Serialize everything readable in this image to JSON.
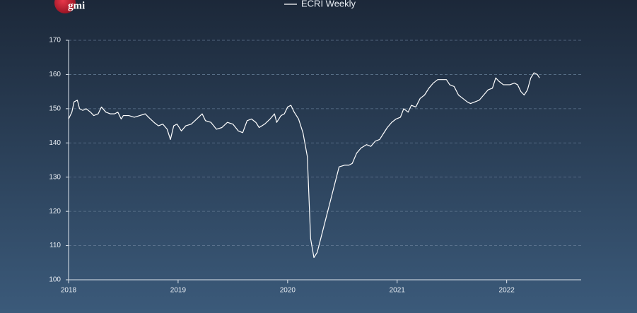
{
  "logo": "gmi",
  "chart_data": {
    "type": "line",
    "xlim": [
      2018,
      2022.68
    ],
    "xticks": [
      2018,
      2019,
      2020,
      2021,
      2022
    ],
    "ylim": [
      100,
      170
    ],
    "yticks": [
      100,
      110,
      120,
      130,
      140,
      150,
      160,
      170
    ],
    "grid": true,
    "legend": "top",
    "x": [
      2018.0,
      2018.03,
      2018.05,
      2018.08,
      2018.1,
      2018.13,
      2018.16,
      2018.2,
      2018.23,
      2018.27,
      2018.3,
      2018.34,
      2018.38,
      2018.42,
      2018.45,
      2018.48,
      2018.5,
      2018.55,
      2018.6,
      2018.65,
      2018.7,
      2018.73,
      2018.78,
      2018.82,
      2018.86,
      2018.9,
      2018.93,
      2018.96,
      2018.99,
      2019.03,
      2019.07,
      2019.12,
      2019.17,
      2019.22,
      2019.25,
      2019.3,
      2019.35,
      2019.4,
      2019.45,
      2019.5,
      2019.55,
      2019.59,
      2019.63,
      2019.67,
      2019.71,
      2019.74,
      2019.79,
      2019.84,
      2019.88,
      2019.9,
      2019.94,
      2019.97,
      2020.0,
      2020.03,
      2020.06,
      2020.1,
      2020.14,
      2020.18,
      2020.21,
      2020.24,
      2020.27,
      2020.31,
      2020.35,
      2020.39,
      2020.43,
      2020.47,
      2020.52,
      2020.56,
      2020.59,
      2020.63,
      2020.67,
      2020.72,
      2020.76,
      2020.8,
      2020.84,
      2020.88,
      2020.91,
      2020.95,
      2020.99,
      2021.03,
      2021.06,
      2021.1,
      2021.13,
      2021.17,
      2021.21,
      2021.25,
      2021.29,
      2021.33,
      2021.37,
      2021.41,
      2021.45,
      2021.48,
      2021.52,
      2021.56,
      2021.6,
      2021.64,
      2021.67,
      2021.71,
      2021.75,
      2021.79,
      2021.83,
      2021.87,
      2021.9,
      2021.93,
      2021.97,
      2022.0,
      2022.03,
      2022.07,
      2022.1,
      2022.13,
      2022.16,
      2022.19,
      2022.22,
      2022.25,
      2022.28,
      2022.3
    ],
    "series": [
      {
        "name": "ECRI Weekly",
        "color": "#ffffff",
        "values": [
          147,
          149,
          152,
          152.5,
          150,
          149.5,
          150,
          149,
          148,
          148.5,
          150.5,
          149,
          148.5,
          148.5,
          149,
          147,
          148,
          148,
          147.5,
          148,
          148.5,
          147.5,
          146,
          145,
          145.5,
          144,
          141,
          145,
          145.5,
          143.5,
          145,
          145.5,
          147,
          148.5,
          146.5,
          146,
          144,
          144.5,
          146,
          145.5,
          143.5,
          143,
          146.5,
          147,
          146,
          144.5,
          145.5,
          147,
          148.5,
          146,
          148,
          148.5,
          150.5,
          151,
          149,
          147,
          143,
          136,
          112,
          106.5,
          108,
          113,
          118,
          123,
          128,
          133,
          133.5,
          133.5,
          134,
          137,
          138.5,
          139.5,
          139,
          140.5,
          141,
          143,
          144.5,
          146,
          147,
          147.5,
          150,
          149,
          151,
          150.5,
          153,
          154,
          156,
          157.5,
          158.5,
          158.5,
          158.5,
          157,
          156.5,
          154,
          153,
          152,
          151.5,
          152,
          152.5,
          154,
          155.5,
          156,
          159,
          158,
          157,
          157,
          157,
          157.5,
          157,
          155,
          154,
          155.5,
          159,
          160.5,
          160,
          159
        ]
      }
    ]
  }
}
